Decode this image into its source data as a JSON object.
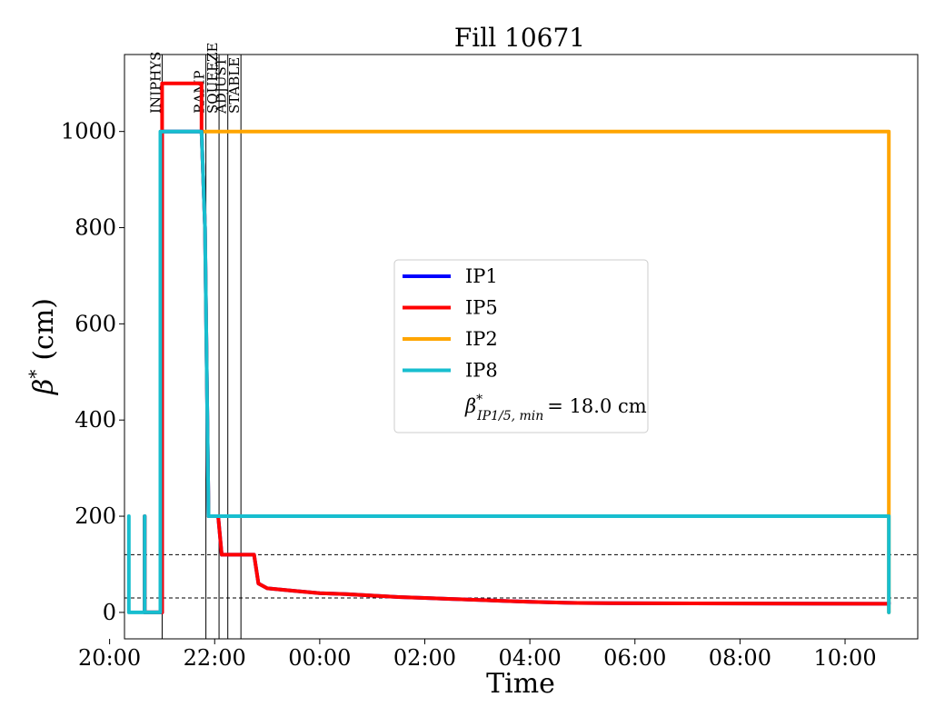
{
  "chart_data": {
    "type": "line",
    "title": "Fill 10671",
    "xlabel": "Time",
    "ylabel_symbol": "β",
    "ylabel_sup": "*",
    "ylabel_unit": "(cm)",
    "xlim": [
      "20:17",
      "11:23"
    ],
    "ylim": [
      -55,
      1160
    ],
    "x_ticks": [
      "20:00",
      "22:00",
      "00:00",
      "02:00",
      "04:00",
      "06:00",
      "08:00",
      "10:00"
    ],
    "y_ticks": [
      0,
      200,
      400,
      600,
      800,
      1000
    ],
    "grid": false,
    "reference_lines": [
      120,
      30
    ],
    "phases": [
      {
        "label": "INJPHYS",
        "time": "21:00"
      },
      {
        "label": "RAMP",
        "time": "21:50"
      },
      {
        "label": "SQUEEZE",
        "time": "22:05"
      },
      {
        "label": "ADJUST",
        "time": "22:15"
      },
      {
        "label": "STABLE",
        "time": "22:30"
      }
    ],
    "series": [
      {
        "name": "IP1",
        "color": "#0000ff",
        "points": [
          [
            "20:40",
            0
          ],
          [
            "20:40",
            200
          ],
          [
            "20:40",
            0
          ],
          [
            "21:00",
            0
          ],
          [
            "21:00",
            1000
          ],
          [
            "21:45",
            1000
          ],
          [
            "21:49",
            800
          ],
          [
            "21:53",
            200
          ],
          [
            "22:04",
            200
          ],
          [
            "22:08",
            120
          ],
          [
            "22:45",
            120
          ],
          [
            "22:50",
            60
          ],
          [
            "23:00",
            50
          ],
          [
            "23:30",
            45
          ],
          [
            "00:00",
            40
          ],
          [
            "00:30",
            38
          ],
          [
            "01:00",
            35
          ],
          [
            "01:30",
            32
          ],
          [
            "02:00",
            30
          ],
          [
            "02:30",
            28
          ],
          [
            "03:00",
            26
          ],
          [
            "03:30",
            24
          ],
          [
            "04:00",
            22
          ],
          [
            "04:40",
            20
          ],
          [
            "05:30",
            19
          ],
          [
            "10:50",
            18
          ],
          [
            "10:50",
            20
          ]
        ]
      },
      {
        "name": "IP5",
        "color": "#ff0000",
        "points": [
          [
            "20:40",
            0
          ],
          [
            "20:40",
            200
          ],
          [
            "20:40",
            0
          ],
          [
            "21:00",
            0
          ],
          [
            "21:00",
            1100
          ],
          [
            "21:45",
            1100
          ],
          [
            "21:45",
            1000
          ],
          [
            "21:49",
            800
          ],
          [
            "21:53",
            200
          ],
          [
            "22:04",
            200
          ],
          [
            "22:08",
            120
          ],
          [
            "22:45",
            120
          ],
          [
            "22:50",
            60
          ],
          [
            "23:00",
            50
          ],
          [
            "23:30",
            45
          ],
          [
            "00:00",
            40
          ],
          [
            "00:30",
            38
          ],
          [
            "01:00",
            35
          ],
          [
            "01:30",
            32
          ],
          [
            "02:00",
            30
          ],
          [
            "02:30",
            28
          ],
          [
            "03:00",
            26
          ],
          [
            "03:30",
            24
          ],
          [
            "04:00",
            22
          ],
          [
            "04:40",
            20
          ],
          [
            "05:30",
            19
          ],
          [
            "10:50",
            18
          ],
          [
            "10:50",
            20
          ]
        ]
      },
      {
        "name": "IP2",
        "color": "#ffa500",
        "points": [
          [
            "20:40",
            0
          ],
          [
            "20:40",
            200
          ],
          [
            "20:40",
            0
          ],
          [
            "21:00",
            0
          ],
          [
            "21:00",
            1000
          ],
          [
            "10:50",
            1000
          ],
          [
            "10:50",
            200
          ],
          [
            "10:50",
            0
          ]
        ]
      },
      {
        "name": "IP8",
        "color": "#17becf",
        "points": [
          [
            "20:22",
            0
          ],
          [
            "20:22",
            200
          ],
          [
            "20:22",
            0
          ],
          [
            "20:40",
            0
          ],
          [
            "20:40",
            200
          ],
          [
            "20:40",
            0
          ],
          [
            "20:58",
            0
          ],
          [
            "20:58",
            1000
          ],
          [
            "21:45",
            1000
          ],
          [
            "21:49",
            800
          ],
          [
            "21:53",
            200
          ],
          [
            "10:50",
            200
          ],
          [
            "10:50",
            0
          ]
        ]
      }
    ],
    "legend": {
      "placement": "center",
      "min_label_prefix": "β",
      "min_label_sup": "*",
      "min_label_sub": "IP1/5, min",
      "min_label_value": "= 18.0 cm"
    }
  }
}
